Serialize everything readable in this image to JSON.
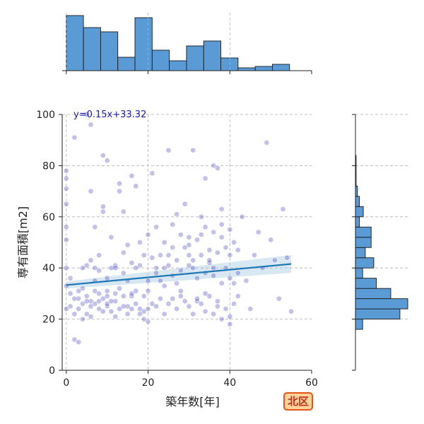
{
  "badge": {
    "label": "北区"
  },
  "chart_data": {
    "type": "scatter",
    "xlabel": "築年数[年]",
    "ylabel": "専有面積[m2]",
    "xlim": [
      -1,
      60
    ],
    "ylim": [
      0,
      100
    ],
    "xticks": [
      0,
      20,
      40,
      60
    ],
    "yticks": [
      0,
      20,
      40,
      60,
      80,
      100
    ],
    "grid": true,
    "annotation": "y=0.15x+33.32",
    "regression": {
      "slope": 0.15,
      "intercept": 33.32,
      "x_range": [
        0,
        55
      ]
    },
    "colors": {
      "points": "#3333bb",
      "regression": "#1f77b4",
      "hist": "#5b9bd5"
    },
    "marginal_x_hist": {
      "bin_edges": [
        0,
        4.2,
        8.4,
        12.6,
        16.8,
        21.0,
        25.2,
        29.4,
        33.6,
        37.8,
        42.0,
        46.2,
        50.4,
        54.6
      ],
      "counts": [
        78,
        61,
        55,
        19,
        75,
        29,
        14,
        35,
        42,
        18,
        4,
        6,
        9
      ]
    },
    "marginal_y_hist": {
      "bin_edges": [
        16,
        20,
        24,
        28,
        32,
        36,
        40,
        44,
        48,
        52,
        56,
        60,
        64,
        68,
        72,
        76,
        80,
        84
      ],
      "counts": [
        11,
        68,
        80,
        54,
        32,
        11,
        28,
        15,
        24,
        24,
        6,
        12,
        6,
        3,
        1,
        1,
        1
      ]
    },
    "points": [
      [
        0,
        33
      ],
      [
        0,
        24
      ],
      [
        0,
        40
      ],
      [
        0,
        51
      ],
      [
        0,
        56
      ],
      [
        0,
        65
      ],
      [
        0,
        71
      ],
      [
        0,
        75
      ],
      [
        0,
        78
      ],
      [
        1,
        36
      ],
      [
        1,
        30
      ],
      [
        2,
        12
      ],
      [
        3,
        11
      ],
      [
        2,
        91
      ],
      [
        1,
        25
      ],
      [
        2,
        22
      ],
      [
        3,
        31
      ],
      [
        4,
        40
      ],
      [
        4,
        20
      ],
      [
        5,
        29
      ],
      [
        5,
        100
      ],
      [
        6,
        96
      ],
      [
        6,
        70
      ],
      [
        6,
        27
      ],
      [
        7,
        35
      ],
      [
        7,
        56
      ],
      [
        7,
        40
      ],
      [
        8,
        24
      ],
      [
        8,
        45
      ],
      [
        9,
        62
      ],
      [
        9,
        64
      ],
      [
        9,
        84
      ],
      [
        10,
        25
      ],
      [
        10,
        31
      ],
      [
        10,
        82
      ],
      [
        11,
        40
      ],
      [
        11,
        52
      ],
      [
        12,
        30
      ],
      [
        12,
        41
      ],
      [
        13,
        70
      ],
      [
        13,
        73
      ],
      [
        14,
        46
      ],
      [
        14,
        62
      ],
      [
        15,
        49
      ],
      [
        15,
        35
      ],
      [
        16,
        76
      ],
      [
        16,
        29
      ],
      [
        17,
        72
      ],
      [
        17,
        40
      ],
      [
        18,
        50
      ],
      [
        19,
        45
      ],
      [
        19,
        20
      ],
      [
        20,
        53
      ],
      [
        20,
        24
      ],
      [
        20,
        19
      ],
      [
        21,
        77
      ],
      [
        22,
        40
      ],
      [
        22,
        56
      ],
      [
        23,
        35
      ],
      [
        24,
        22
      ],
      [
        25,
        86
      ],
      [
        25,
        45
      ],
      [
        26,
        57
      ],
      [
        27,
        61
      ],
      [
        27,
        34
      ],
      [
        28,
        29
      ],
      [
        29,
        65
      ],
      [
        30,
        45
      ],
      [
        30,
        52
      ],
      [
        31,
        86
      ],
      [
        31,
        40
      ],
      [
        32,
        27
      ],
      [
        33,
        53
      ],
      [
        33,
        60
      ],
      [
        34,
        75
      ],
      [
        34,
        30
      ],
      [
        35,
        47
      ],
      [
        35,
        42
      ],
      [
        36,
        80
      ],
      [
        36,
        37
      ],
      [
        37,
        25
      ],
      [
        37,
        79
      ],
      [
        38,
        52
      ],
      [
        38,
        63
      ],
      [
        39,
        40
      ],
      [
        40,
        18
      ],
      [
        40,
        45
      ],
      [
        41,
        34
      ],
      [
        41,
        50
      ],
      [
        42,
        29
      ],
      [
        43,
        60
      ],
      [
        44,
        35
      ],
      [
        45,
        24
      ],
      [
        46,
        45
      ],
      [
        47,
        54
      ],
      [
        48,
        40
      ],
      [
        49,
        89
      ],
      [
        50,
        51
      ],
      [
        51,
        43
      ],
      [
        52,
        28
      ],
      [
        53,
        63
      ],
      [
        54,
        44
      ],
      [
        55,
        23
      ],
      [
        3,
        28
      ],
      [
        4,
        26
      ],
      [
        5,
        22
      ],
      [
        6,
        25
      ],
      [
        7,
        31
      ],
      [
        8,
        27
      ],
      [
        9,
        28
      ],
      [
        10,
        26
      ],
      [
        11,
        23
      ],
      [
        12,
        27
      ],
      [
        13,
        24
      ],
      [
        14,
        29
      ],
      [
        15,
        25
      ],
      [
        16,
        30
      ],
      [
        17,
        26
      ],
      [
        18,
        24
      ],
      [
        19,
        23
      ],
      [
        2,
        28
      ],
      [
        3,
        24
      ],
      [
        4,
        32
      ],
      [
        5,
        27
      ],
      [
        6,
        21
      ],
      [
        7,
        26
      ],
      [
        8,
        30
      ],
      [
        9,
        23
      ],
      [
        10,
        29
      ],
      [
        11,
        27
      ],
      [
        12,
        21
      ],
      [
        13,
        32
      ],
      [
        14,
        25
      ],
      [
        15,
        22
      ],
      [
        16,
        24
      ],
      [
        17,
        31
      ],
      [
        18,
        22
      ],
      [
        19,
        29
      ],
      [
        20,
        31
      ],
      [
        21,
        26
      ],
      [
        22,
        25
      ],
      [
        23,
        28
      ],
      [
        24,
        33
      ],
      [
        25,
        26
      ],
      [
        26,
        28
      ],
      [
        27,
        24
      ],
      [
        28,
        31
      ],
      [
        29,
        27
      ],
      [
        30,
        25
      ],
      [
        31,
        22
      ],
      [
        32,
        28
      ],
      [
        33,
        26
      ],
      [
        34,
        23
      ],
      [
        35,
        29
      ],
      [
        36,
        22
      ],
      [
        37,
        27
      ],
      [
        38,
        20
      ],
      [
        39,
        24
      ],
      [
        40,
        21
      ],
      [
        41,
        26
      ],
      [
        21,
        44
      ],
      [
        23,
        45
      ],
      [
        25,
        41
      ],
      [
        27,
        43
      ],
      [
        29,
        48
      ],
      [
        31,
        43
      ],
      [
        33,
        45
      ],
      [
        35,
        43
      ],
      [
        37,
        46
      ],
      [
        39,
        48
      ],
      [
        24,
        50
      ],
      [
        26,
        48
      ],
      [
        28,
        53
      ],
      [
        30,
        49
      ],
      [
        32,
        51
      ],
      [
        34,
        56
      ],
      [
        36,
        54
      ],
      [
        38,
        57
      ],
      [
        40,
        55
      ],
      [
        42,
        47
      ],
      [
        5,
        41
      ],
      [
        6,
        43
      ],
      [
        8,
        39
      ],
      [
        10,
        36
      ],
      [
        12,
        40
      ],
      [
        14,
        38
      ],
      [
        16,
        42
      ],
      [
        18,
        41
      ],
      [
        20,
        35
      ],
      [
        22,
        38
      ],
      [
        24,
        40
      ],
      [
        26,
        37
      ],
      [
        28,
        39
      ],
      [
        30,
        41
      ],
      [
        32,
        36
      ],
      [
        34,
        38
      ],
      [
        36,
        40
      ],
      [
        38,
        34
      ],
      [
        40,
        36
      ],
      [
        42,
        38
      ]
    ]
  }
}
